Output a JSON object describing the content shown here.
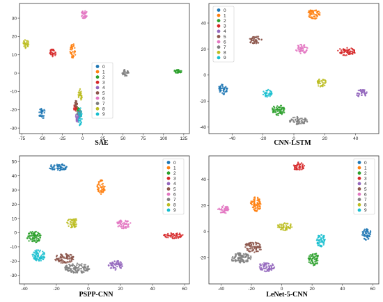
{
  "palette": [
    "#1f77b4",
    "#ff7f0e",
    "#2ca02c",
    "#d62728",
    "#9467bd",
    "#8c564b",
    "#e377c2",
    "#7f7f7f",
    "#bcbd22",
    "#17becf"
  ],
  "chart_data": [
    {
      "type": "scatter",
      "title": "SAE",
      "xlabel": "",
      "ylabel": "",
      "xlim": [
        -78,
        132
      ],
      "ylim": [
        -33,
        38
      ],
      "xticks": [
        -75,
        -50,
        -25,
        0,
        25,
        50,
        75,
        100,
        125
      ],
      "yticks": [
        30,
        20,
        10,
        0,
        -10,
        -20,
        -30
      ],
      "legend": {
        "entries": [
          "0",
          "1",
          "2",
          "3",
          "4",
          "5",
          "6",
          "7",
          "8",
          "9"
        ],
        "placement": "center-left"
      },
      "series": [
        {
          "name": "0",
          "clusters": [
            {
              "x": -50,
              "y": -22,
              "rx": 4,
              "ry": 3
            }
          ]
        },
        {
          "name": "1",
          "clusters": [
            {
              "x": -12,
              "y": 12,
              "rx": 3.5,
              "ry": 4
            }
          ]
        },
        {
          "name": "2",
          "clusters": [
            {
              "x": 118,
              "y": 1,
              "rx": 5,
              "ry": 1
            },
            {
              "x": -5,
              "y": -21,
              "rx": 2,
              "ry": 2
            }
          ]
        },
        {
          "name": "3",
          "clusters": [
            {
              "x": -37,
              "y": 11,
              "rx": 4,
              "ry": 2.2
            },
            {
              "x": -9,
              "y": -19,
              "rx": 2,
              "ry": 2
            }
          ]
        },
        {
          "name": "4",
          "clusters": [
            {
              "x": -6,
              "y": -24,
              "rx": 2.5,
              "ry": 3
            }
          ]
        },
        {
          "name": "5",
          "clusters": [
            {
              "x": -8,
              "y": -17,
              "rx": 2,
              "ry": 2
            }
          ]
        },
        {
          "name": "6",
          "clusters": [
            {
              "x": 2,
              "y": 32,
              "rx": 4,
              "ry": 2.2
            }
          ]
        },
        {
          "name": "7",
          "clusters": [
            {
              "x": 53,
              "y": 0,
              "rx": 4,
              "ry": 2
            },
            {
              "x": -3,
              "y": -22,
              "rx": 1.8,
              "ry": 2
            }
          ]
        },
        {
          "name": "8",
          "clusters": [
            {
              "x": -70,
              "y": 16,
              "rx": 3.5,
              "ry": 2.6
            },
            {
              "x": -3,
              "y": -12,
              "rx": 2.5,
              "ry": 3.5
            }
          ]
        },
        {
          "name": "9",
          "clusters": [
            {
              "x": -3,
              "y": -24,
              "rx": 2.5,
              "ry": 5
            }
          ]
        }
      ]
    },
    {
      "type": "scatter",
      "title": "CNN-LSTM",
      "xlabel": "",
      "ylabel": "",
      "xlim": [
        -55,
        55
      ],
      "ylim": [
        -45,
        55
      ],
      "xticks": [
        -40,
        -20,
        0,
        20,
        40
      ],
      "yticks": [
        40,
        20,
        0,
        -20,
        -40
      ],
      "legend": {
        "entries": [
          "0",
          "1",
          "2",
          "3",
          "4",
          "5",
          "6",
          "7",
          "8",
          "9"
        ],
        "placement": "top-left"
      },
      "series": [
        {
          "name": "0",
          "clusters": [
            {
              "x": -46,
              "y": -11,
              "rx": 3,
              "ry": 4
            }
          ]
        },
        {
          "name": "1",
          "clusters": [
            {
              "x": 13,
              "y": 47,
              "rx": 4,
              "ry": 4
            }
          ]
        },
        {
          "name": "2",
          "clusters": [
            {
              "x": -10,
              "y": -27,
              "rx": 4.5,
              "ry": 4
            }
          ]
        },
        {
          "name": "3",
          "clusters": [
            {
              "x": 34,
              "y": 18,
              "rx": 6,
              "ry": 3
            }
          ]
        },
        {
          "name": "4",
          "clusters": [
            {
              "x": 44,
              "y": -14,
              "rx": 4,
              "ry": 3
            }
          ]
        },
        {
          "name": "5",
          "clusters": [
            {
              "x": -25,
              "y": 27,
              "rx": 4.5,
              "ry": 3
            }
          ]
        },
        {
          "name": "6",
          "clusters": [
            {
              "x": 5,
              "y": 20,
              "rx": 4,
              "ry": 3.5
            }
          ]
        },
        {
          "name": "7",
          "clusters": [
            {
              "x": 3,
              "y": -35,
              "rx": 6,
              "ry": 3
            }
          ]
        },
        {
          "name": "8",
          "clusters": [
            {
              "x": 18,
              "y": -6,
              "rx": 3,
              "ry": 3.5
            }
          ]
        },
        {
          "name": "9",
          "clusters": [
            {
              "x": -17,
              "y": -14,
              "rx": 3,
              "ry": 3
            }
          ]
        }
      ]
    },
    {
      "type": "scatter",
      "title": "PSPP-CNN",
      "xlabel": "",
      "ylabel": "",
      "xlim": [
        -43,
        63
      ],
      "ylim": [
        -36,
        54
      ],
      "xticks": [
        -40,
        -20,
        0,
        20,
        40,
        60
      ],
      "yticks": [
        50,
        40,
        30,
        20,
        10,
        0,
        -10,
        -20,
        -30
      ],
      "legend": {
        "entries": [
          "0",
          "1",
          "2",
          "3",
          "4",
          "5",
          "6",
          "7",
          "8",
          "9"
        ],
        "placement": "right"
      },
      "series": [
        {
          "name": "0",
          "clusters": [
            {
              "x": -19,
              "y": 46,
              "rx": 6,
              "ry": 2.5
            }
          ]
        },
        {
          "name": "1",
          "clusters": [
            {
              "x": 8,
              "y": 32,
              "rx": 2.5,
              "ry": 5
            }
          ]
        },
        {
          "name": "2",
          "clusters": [
            {
              "x": -34,
              "y": -3,
              "rx": 4.5,
              "ry": 4
            }
          ]
        },
        {
          "name": "3",
          "clusters": [
            {
              "x": 53,
              "y": -2,
              "rx": 6,
              "ry": 2
            }
          ]
        },
        {
          "name": "4",
          "clusters": [
            {
              "x": 17,
              "y": -23,
              "rx": 4.5,
              "ry": 3.5
            }
          ]
        },
        {
          "name": "5",
          "clusters": [
            {
              "x": -15,
              "y": -18,
              "rx": 6,
              "ry": 3.5
            }
          ]
        },
        {
          "name": "6",
          "clusters": [
            {
              "x": 22,
              "y": 6,
              "rx": 4.5,
              "ry": 3
            }
          ]
        },
        {
          "name": "7",
          "clusters": [
            {
              "x": -7,
              "y": -25,
              "rx": 8,
              "ry": 3.5
            }
          ]
        },
        {
          "name": "8",
          "clusters": [
            {
              "x": -10,
              "y": 7,
              "rx": 3.5,
              "ry": 3.5
            }
          ]
        },
        {
          "name": "9",
          "clusters": [
            {
              "x": -31,
              "y": -16,
              "rx": 4,
              "ry": 4
            }
          ]
        }
      ]
    },
    {
      "type": "scatter",
      "title": "LeNet-5-CNN",
      "xlabel": "",
      "ylabel": "",
      "xlim": [
        -48,
        64
      ],
      "ylim": [
        -40,
        58
      ],
      "xticks": [
        -40,
        -20,
        0,
        20,
        40,
        60
      ],
      "yticks": [
        40,
        20,
        0,
        -20
      ],
      "legend": {
        "entries": [
          "0",
          "1",
          "2",
          "3",
          "4",
          "5",
          "6",
          "7",
          "8",
          "9"
        ],
        "placement": "top-right"
      },
      "series": [
        {
          "name": "0",
          "clusters": [
            {
              "x": 56,
              "y": -2,
              "rx": 3,
              "ry": 4.5
            }
          ]
        },
        {
          "name": "1",
          "clusters": [
            {
              "x": -17,
              "y": 21,
              "rx": 3.5,
              "ry": 5.5
            }
          ]
        },
        {
          "name": "2",
          "clusters": [
            {
              "x": 21,
              "y": -21,
              "rx": 3.5,
              "ry": 5
            }
          ]
        },
        {
          "name": "3",
          "clusters": [
            {
              "x": 11,
              "y": 50,
              "rx": 4,
              "ry": 3
            }
          ]
        },
        {
          "name": "4",
          "clusters": [
            {
              "x": -10,
              "y": -27,
              "rx": 5.5,
              "ry": 3.5
            }
          ]
        },
        {
          "name": "5",
          "clusters": [
            {
              "x": -19,
              "y": -12,
              "rx": 6,
              "ry": 4
            }
          ]
        },
        {
          "name": "6",
          "clusters": [
            {
              "x": -38,
              "y": 17,
              "rx": 4,
              "ry": 3
            }
          ]
        },
        {
          "name": "7",
          "clusters": [
            {
              "x": -27,
              "y": -20,
              "rx": 7,
              "ry": 4
            }
          ]
        },
        {
          "name": "8",
          "clusters": [
            {
              "x": 2,
              "y": 4,
              "rx": 5,
              "ry": 3
            }
          ]
        },
        {
          "name": "9",
          "clusters": [
            {
              "x": 26,
              "y": -7,
              "rx": 3,
              "ry": 5
            }
          ]
        }
      ]
    }
  ]
}
